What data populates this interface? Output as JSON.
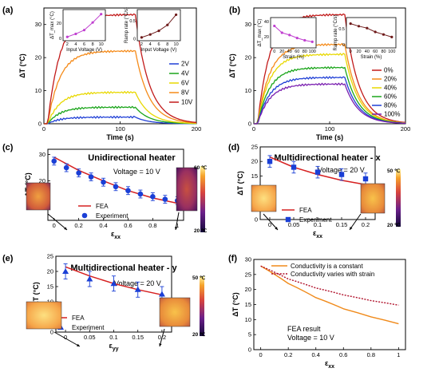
{
  "chart_data": [
    {
      "panel": "(a)",
      "type": "line",
      "xlabel": "Time (s)",
      "ylabel": "ΔT (°C)",
      "xlim": [
        0,
        200
      ],
      "ylim": [
        0,
        35
      ],
      "xticks": [
        "0",
        "100",
        "200"
      ],
      "yticks": [
        "0",
        "10",
        "20",
        "30"
      ],
      "legend_position": "right",
      "series": [
        {
          "name": "2V",
          "color": "#1f3fd6",
          "plateau": 2
        },
        {
          "name": "4V",
          "color": "#1aa51a",
          "plateau": 5
        },
        {
          "name": "6V",
          "color": "#e8d800",
          "plateau": 9.5
        },
        {
          "name": "8V",
          "color": "#f58a18",
          "plateau": 22
        },
        {
          "name": "10V",
          "color": "#c21a1a",
          "plateau": 33
        }
      ],
      "profile": {
        "on_start": 5,
        "off_time": 120,
        "end": 200
      },
      "insets": [
        {
          "xlabel": "Input Voltage (V)",
          "ylabel": "ΔT_max (°C)",
          "color": "#c040d0",
          "xticks": [
            "2",
            "4",
            "6",
            "8",
            "10"
          ],
          "yticks": [
            "0",
            "20"
          ],
          "x": [
            2,
            4,
            6,
            8,
            10
          ],
          "y": [
            2,
            6,
            11,
            21,
            32
          ],
          "xlim": [
            1,
            11
          ],
          "ylim": [
            -3,
            38
          ]
        },
        {
          "xlabel": "Input Voltage (V)",
          "ylabel": "Ramp rate (°C/s)",
          "color": "#6e1a1a",
          "xticks": [
            "2",
            "4",
            "6",
            "8",
            "10"
          ],
          "yticks": [
            "0",
            "0.5"
          ],
          "x": [
            2,
            4,
            6,
            8,
            10
          ],
          "y": [
            0.04,
            0.12,
            0.22,
            0.38,
            0.66
          ],
          "xlim": [
            1,
            11
          ],
          "ylim": [
            -0.05,
            0.8
          ]
        }
      ]
    },
    {
      "panel": "(b)",
      "type": "line",
      "xlabel": "Time (s)",
      "ylabel": "ΔT (°C)",
      "xlim": [
        0,
        200
      ],
      "ylim": [
        0,
        35
      ],
      "xticks": [
        "0",
        "100",
        "200"
      ],
      "yticks": [
        "0",
        "10",
        "20",
        "30"
      ],
      "legend_position": "right",
      "series": [
        {
          "name": "0%",
          "color": "#c21a1a",
          "plateau": 33
        },
        {
          "name": "20%",
          "color": "#f58a18",
          "plateau": 24
        },
        {
          "name": "40%",
          "color": "#e8d800",
          "plateau": 21
        },
        {
          "name": "60%",
          "color": "#1aa51a",
          "plateau": 17
        },
        {
          "name": "80%",
          "color": "#1f3fd6",
          "plateau": 14
        },
        {
          "name": "100%",
          "color": "#7a1fb0",
          "plateau": 12
        }
      ],
      "profile": {
        "on_start": 5,
        "off_time": 120,
        "end": 200
      },
      "insets": [
        {
          "xlabel": "Strain (%)",
          "ylabel": "ΔT_max (°C)",
          "color": "#c040d0",
          "xticks": [
            "0",
            "20",
            "40",
            "60",
            "80",
            "100"
          ],
          "yticks": [
            "20",
            "40"
          ],
          "x": [
            0,
            20,
            40,
            60,
            80,
            100
          ],
          "y": [
            34,
            25,
            22,
            18,
            15,
            13
          ],
          "xlim": [
            -10,
            110
          ],
          "ylim": [
            5,
            45
          ]
        },
        {
          "xlabel": "Strain (%)",
          "ylabel": "Ramp rate (°C/s)",
          "color": "#6e1a1a",
          "xticks": [
            "0",
            "20",
            "40",
            "60",
            "80",
            "100"
          ],
          "yticks": [
            "0",
            "0.5"
          ],
          "x": [
            0,
            20,
            40,
            60,
            80,
            100
          ],
          "y": [
            0.66,
            0.58,
            0.52,
            0.4,
            0.32,
            0.24
          ],
          "xlim": [
            -10,
            110
          ],
          "ylim": [
            -0.1,
            0.85
          ]
        }
      ]
    },
    {
      "panel": "(c)",
      "type": "scatter",
      "title": "Unidirectional heater",
      "note": "Voltage = 10 V",
      "xlabel": "ε",
      "xlabel_sub": "xx",
      "ylabel": "ΔT (°C)",
      "xlim": [
        -0.05,
        1.05
      ],
      "ylim": [
        5,
        32
      ],
      "xticks": [
        "0",
        "0.2",
        "0.4",
        "0.6",
        "0.8",
        "1"
      ],
      "yticks": [
        "10",
        "20",
        "30"
      ],
      "fea": {
        "x": [
          0,
          0.2,
          0.4,
          0.6,
          0.8,
          1.0
        ],
        "y": [
          29,
          24,
          20,
          16.3,
          13.5,
          11.5
        ]
      },
      "experiment": {
        "x": [
          0,
          0.1,
          0.2,
          0.3,
          0.4,
          0.5,
          0.6,
          0.7,
          0.8,
          0.9,
          1.0
        ],
        "y": [
          27.5,
          25,
          23,
          21.5,
          19.5,
          17.8,
          16.3,
          15,
          14,
          13,
          12.5
        ],
        "err": [
          1.5,
          1.5,
          1.5,
          1.5,
          1.5,
          1.5,
          1.5,
          1.5,
          1.5,
          1.5,
          1.5
        ]
      },
      "legend": [
        "FEA",
        "Experiment"
      ],
      "colorbar": {
        "max": "60 ℃",
        "min": "20 ℃"
      }
    },
    {
      "panel": "(d)",
      "type": "scatter",
      "title": "Multidirectional heater - x",
      "note": "Voltage = 20 V",
      "xlabel": "ε",
      "xlabel_sub": "xx",
      "ylabel": "ΔT (°C)",
      "xlim": [
        -0.02,
        0.22
      ],
      "ylim": [
        0,
        25
      ],
      "xticks": [
        "0",
        "0.05",
        "0.1",
        "0.15",
        "0.2"
      ],
      "yticks": [
        "0",
        "5",
        "10",
        "15",
        "20",
        "25"
      ],
      "fea": {
        "x": [
          0,
          0.05,
          0.1,
          0.15,
          0.2
        ],
        "y": [
          21.5,
          18,
          15.5,
          13.5,
          12
        ]
      },
      "experiment": {
        "x": [
          0,
          0.05,
          0.1,
          0.15,
          0.2
        ],
        "y": [
          20,
          18,
          16.3,
          15.5,
          14
        ],
        "err": [
          2,
          2,
          2,
          2,
          2
        ]
      },
      "legend": [
        "FEA",
        "Experiment"
      ],
      "colorbar": {
        "max": "50 ℃",
        "min": "20 ℃"
      }
    },
    {
      "panel": "(e)",
      "type": "scatter",
      "title": "Multidirectional heater - y",
      "note": "Voltage = 20 V",
      "xlabel": "ε",
      "xlabel_sub": "yy",
      "ylabel": "ΔT (°C)",
      "xlim": [
        -0.02,
        0.22
      ],
      "ylim": [
        0,
        25
      ],
      "xticks": [
        "0",
        "0.05",
        "0.1",
        "0.15",
        "0.2"
      ],
      "yticks": [
        "0",
        "5",
        "10",
        "15",
        "20",
        "25"
      ],
      "fea": {
        "x": [
          0,
          0.05,
          0.1,
          0.15,
          0.2
        ],
        "y": [
          21.5,
          18.5,
          16,
          14,
          12.3
        ]
      },
      "experiment": {
        "x": [
          0,
          0.05,
          0.1,
          0.15,
          0.2
        ],
        "y": [
          20,
          17.5,
          16,
          14,
          12.5
        ],
        "err": [
          2.5,
          2.5,
          2.5,
          2.5,
          2.5
        ]
      },
      "legend": [
        "FEA",
        "Experiment"
      ],
      "colorbar": {
        "max": "50 ℃",
        "min": "20 ℃"
      }
    },
    {
      "panel": "(f)",
      "type": "line",
      "note": "FEA result\nVoltage = 10 V",
      "xlabel": "ε",
      "xlabel_sub": "xx",
      "ylabel": "ΔT (°C)",
      "xlim": [
        -0.05,
        1.05
      ],
      "ylim": [
        0,
        30
      ],
      "xticks": [
        "0",
        "0.2",
        "0.4",
        "0.6",
        "0.8",
        "1"
      ],
      "yticks": [
        "0",
        "5",
        "10",
        "15",
        "20",
        "25",
        "30"
      ],
      "series": [
        {
          "name": "Conductivity is a constant",
          "color": "#f08a1a",
          "style": "solid",
          "x": [
            0,
            0.2,
            0.4,
            0.6,
            0.8,
            1.0
          ],
          "y": [
            27.8,
            22,
            17.3,
            13.6,
            10.9,
            8.6
          ]
        },
        {
          "name": "Conductivity varies with strain",
          "color": "#b0102a",
          "style": "dotted",
          "x": [
            0,
            0.2,
            0.4,
            0.6,
            0.8,
            1.0
          ],
          "y": [
            27.8,
            23.5,
            20.5,
            18.2,
            16.3,
            14.8
          ]
        }
      ]
    }
  ]
}
